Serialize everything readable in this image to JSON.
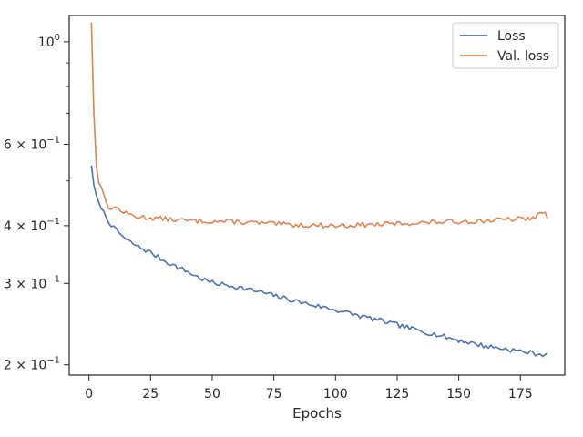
{
  "chart_data": {
    "type": "line",
    "title": "",
    "xlabel": "Epochs",
    "ylabel": "",
    "xlim": [
      -8,
      193
    ],
    "ylim": [
      0.19,
      1.14
    ],
    "yscale": "log",
    "grid": false,
    "legend_position": "top-right",
    "x_ticks": [
      0,
      25,
      50,
      75,
      100,
      125,
      150,
      175
    ],
    "x_tick_labels": [
      "0",
      "25",
      "50",
      "75",
      "100",
      "125",
      "150",
      "175"
    ],
    "y_major_ticks": [
      {
        "value": 0.2,
        "base": "2",
        "exp": "−1"
      },
      {
        "value": 0.3,
        "base": "3",
        "exp": "−1"
      },
      {
        "value": 0.4,
        "base": "4",
        "exp": "−1"
      },
      {
        "value": 0.6,
        "base": "6",
        "exp": "−1"
      },
      {
        "value": 1.0,
        "base": "10",
        "exp": "0",
        "plain_base": "1"
      }
    ],
    "y_minor_ticks": [
      0.5,
      0.7,
      0.8,
      0.9
    ],
    "series": [
      {
        "name": "Loss",
        "color": "#4c72b0",
        "anchors": [
          [
            1,
            0.54
          ],
          [
            2,
            0.49
          ],
          [
            3,
            0.465
          ],
          [
            5,
            0.435
          ],
          [
            8,
            0.41
          ],
          [
            10,
            0.395
          ],
          [
            13,
            0.383
          ],
          [
            15,
            0.373
          ],
          [
            20,
            0.36
          ],
          [
            25,
            0.35
          ],
          [
            30,
            0.337
          ],
          [
            35,
            0.327
          ],
          [
            40,
            0.318
          ],
          [
            45,
            0.308
          ],
          [
            50,
            0.301
          ],
          [
            60,
            0.295
          ],
          [
            70,
            0.287
          ],
          [
            80,
            0.278
          ],
          [
            90,
            0.27
          ],
          [
            100,
            0.263
          ],
          [
            110,
            0.255
          ],
          [
            120,
            0.248
          ],
          [
            130,
            0.24
          ],
          [
            140,
            0.233
          ],
          [
            150,
            0.226
          ],
          [
            160,
            0.22
          ],
          [
            170,
            0.216
          ],
          [
            180,
            0.212
          ],
          [
            186,
            0.21
          ]
        ],
        "noise": 0.012,
        "seed": 7
      },
      {
        "name": "Val. loss",
        "color": "#dd8452",
        "anchors": [
          [
            1,
            1.1
          ],
          [
            2,
            0.7
          ],
          [
            3,
            0.54
          ],
          [
            4,
            0.495
          ],
          [
            5,
            0.485
          ],
          [
            6,
            0.47
          ],
          [
            7,
            0.445
          ],
          [
            8,
            0.435
          ],
          [
            10,
            0.44
          ],
          [
            15,
            0.425
          ],
          [
            20,
            0.418
          ],
          [
            40,
            0.41
          ],
          [
            60,
            0.408
          ],
          [
            80,
            0.402
          ],
          [
            100,
            0.4
          ],
          [
            120,
            0.403
          ],
          [
            140,
            0.407
          ],
          [
            160,
            0.41
          ],
          [
            180,
            0.415
          ],
          [
            184,
            0.428
          ],
          [
            186,
            0.418
          ]
        ],
        "noise": 0.012,
        "seed": 13
      }
    ]
  }
}
